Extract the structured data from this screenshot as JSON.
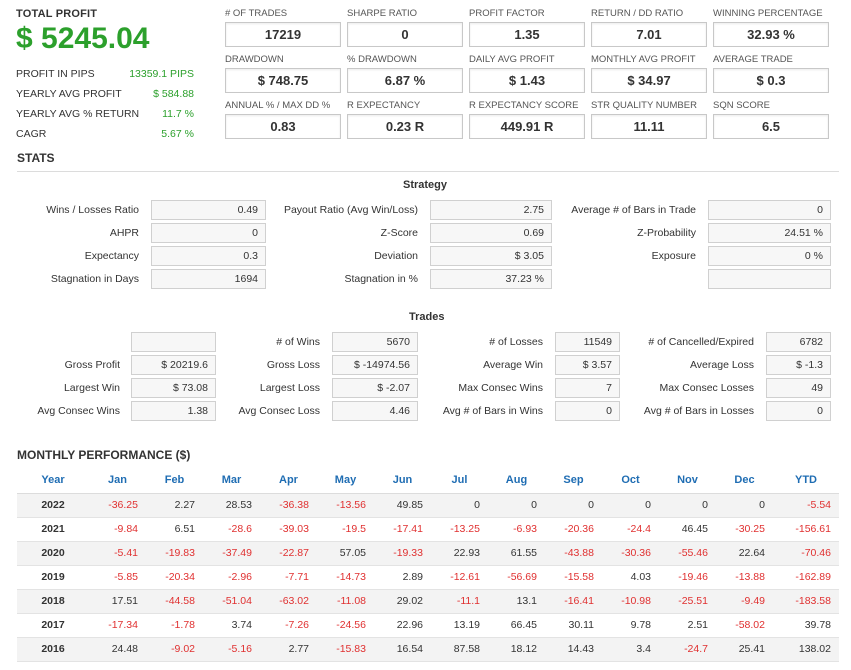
{
  "summary": {
    "total_profit_label": "TOTAL PROFIT",
    "total_profit_value": "$ 5245.04",
    "rows": [
      {
        "label": "PROFIT IN PIPS",
        "value": "13359.1 PIPS"
      },
      {
        "label": "YEARLY AVG PROFIT",
        "value": "$ 584.88"
      },
      {
        "label": "YEARLY AVG % RETURN",
        "value": "11.7 %"
      },
      {
        "label": "CAGR",
        "value": "5.67 %"
      }
    ]
  },
  "metrics": [
    {
      "label": "# OF TRADES",
      "value": "17219"
    },
    {
      "label": "SHARPE RATIO",
      "value": "0"
    },
    {
      "label": "PROFIT FACTOR",
      "value": "1.35"
    },
    {
      "label": "RETURN / DD RATIO",
      "value": "7.01"
    },
    {
      "label": "WINNING PERCENTAGE",
      "value": "32.93 %"
    },
    {
      "label": "DRAWDOWN",
      "value": "$ 748.75"
    },
    {
      "label": "% DRAWDOWN",
      "value": "6.87 %"
    },
    {
      "label": "DAILY AVG PROFIT",
      "value": "$ 1.43"
    },
    {
      "label": "MONTHLY AVG PROFIT",
      "value": "$ 34.97"
    },
    {
      "label": "AVERAGE TRADE",
      "value": "$ 0.3"
    },
    {
      "label": "ANNUAL % / MAX DD %",
      "value": "0.83"
    },
    {
      "label": "R EXPECTANCY",
      "value": "0.23 R"
    },
    {
      "label": "R EXPECTANCY SCORE",
      "value": "449.91 R"
    },
    {
      "label": "STR QUALITY NUMBER",
      "value": "11.11"
    },
    {
      "label": "SQN SCORE",
      "value": "6.5"
    }
  ],
  "stats_title": "STATS",
  "strategy": {
    "title": "Strategy",
    "rows": [
      [
        {
          "label": "Wins / Losses Ratio",
          "value": "0.49"
        },
        {
          "label": "Payout Ratio (Avg Win/Loss)",
          "value": "2.75"
        },
        {
          "label": "Average # of Bars in Trade",
          "value": "0"
        }
      ],
      [
        {
          "label": "AHPR",
          "value": "0"
        },
        {
          "label": "Z-Score",
          "value": "0.69"
        },
        {
          "label": "Z-Probability",
          "value": "24.51 %"
        }
      ],
      [
        {
          "label": "Expectancy",
          "value": "0.3"
        },
        {
          "label": "Deviation",
          "value": "$ 3.05"
        },
        {
          "label": "Exposure",
          "value": "0 %"
        }
      ],
      [
        {
          "label": "Stagnation in Days",
          "value": "1694"
        },
        {
          "label": "Stagnation in %",
          "value": "37.23 %"
        },
        {
          "label": "",
          "value": ""
        }
      ]
    ]
  },
  "trades": {
    "title": "Trades",
    "rows": [
      [
        {
          "label": "",
          "value": ""
        },
        {
          "label": "# of Wins",
          "value": "5670"
        },
        {
          "label": "# of Losses",
          "value": "11549"
        },
        {
          "label": "# of Cancelled/Expired",
          "value": "6782"
        }
      ],
      [
        {
          "label": "Gross Profit",
          "value": "$ 20219.6"
        },
        {
          "label": "Gross Loss",
          "value": "$ -14974.56"
        },
        {
          "label": "Average Win",
          "value": "$ 3.57"
        },
        {
          "label": "Average Loss",
          "value": "$ -1.3"
        }
      ],
      [
        {
          "label": "Largest Win",
          "value": "$ 73.08"
        },
        {
          "label": "Largest Loss",
          "value": "$ -2.07"
        },
        {
          "label": "Max Consec Wins",
          "value": "7"
        },
        {
          "label": "Max Consec Losses",
          "value": "49"
        }
      ],
      [
        {
          "label": "Avg Consec Wins",
          "value": "1.38"
        },
        {
          "label": "Avg Consec Loss",
          "value": "4.46"
        },
        {
          "label": "Avg # of Bars in Wins",
          "value": "0"
        },
        {
          "label": "Avg # of Bars in Losses",
          "value": "0"
        }
      ]
    ]
  },
  "monthly": {
    "title": "MONTHLY PERFORMANCE ($)",
    "headers": [
      "Year",
      "Jan",
      "Feb",
      "Mar",
      "Apr",
      "May",
      "Jun",
      "Jul",
      "Aug",
      "Sep",
      "Oct",
      "Nov",
      "Dec",
      "YTD"
    ],
    "rows": [
      [
        "2022",
        "-36.25",
        "2.27",
        "28.53",
        "-36.38",
        "-13.56",
        "49.85",
        "0",
        "0",
        "0",
        "0",
        "0",
        "0",
        "-5.54"
      ],
      [
        "2021",
        "-9.84",
        "6.51",
        "-28.6",
        "-39.03",
        "-19.5",
        "-17.41",
        "-13.25",
        "-6.93",
        "-20.36",
        "-24.4",
        "46.45",
        "-30.25",
        "-156.61"
      ],
      [
        "2020",
        "-5.41",
        "-19.83",
        "-37.49",
        "-22.87",
        "57.05",
        "-19.33",
        "22.93",
        "61.55",
        "-43.88",
        "-30.36",
        "-55.46",
        "22.64",
        "-70.46"
      ],
      [
        "2019",
        "-5.85",
        "-20.34",
        "-2.96",
        "-7.71",
        "-14.73",
        "2.89",
        "-12.61",
        "-56.69",
        "-15.58",
        "4.03",
        "-19.46",
        "-13.88",
        "-162.89"
      ],
      [
        "2018",
        "17.51",
        "-44.58",
        "-51.04",
        "-63.02",
        "-11.08",
        "29.02",
        "-11.1",
        "13.1",
        "-16.41",
        "-10.98",
        "-25.51",
        "-9.49",
        "-183.58"
      ],
      [
        "2017",
        "-17.34",
        "-1.78",
        "3.74",
        "-7.26",
        "-24.56",
        "22.96",
        "13.19",
        "66.45",
        "30.11",
        "9.78",
        "2.51",
        "-58.02",
        "39.78"
      ],
      [
        "2016",
        "24.48",
        "-9.02",
        "-5.16",
        "2.77",
        "-15.83",
        "16.54",
        "87.58",
        "18.12",
        "14.43",
        "3.4",
        "-24.7",
        "25.41",
        "138.02"
      ]
    ]
  },
  "colors": {
    "positive": "#2ca02c",
    "negative": "#e03030",
    "header_blue": "#1f6db3"
  }
}
